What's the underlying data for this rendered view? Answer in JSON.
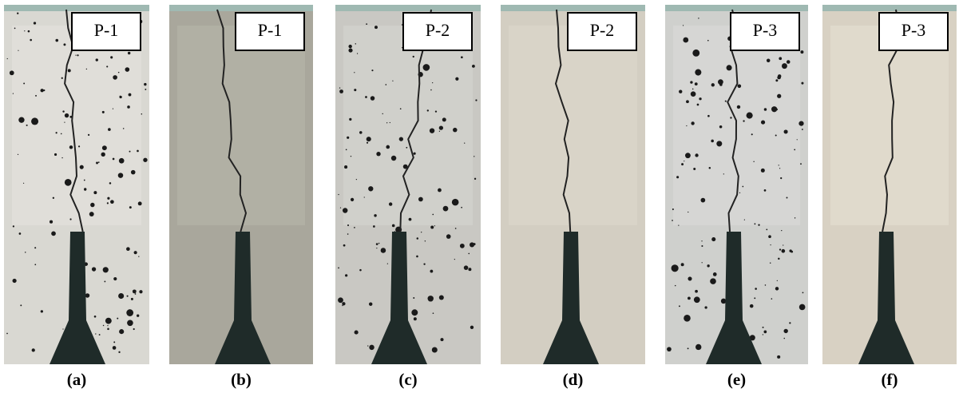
{
  "panels": [
    {
      "label": "P-1",
      "caption": "(a)"
    },
    {
      "label": "P-1",
      "caption": "(b)"
    },
    {
      "label": "P-2",
      "caption": "(c)"
    },
    {
      "label": "P-2",
      "caption": "(d)"
    },
    {
      "label": "P-3",
      "caption": "(e)"
    },
    {
      "label": "P-3",
      "caption": "(f)"
    }
  ]
}
